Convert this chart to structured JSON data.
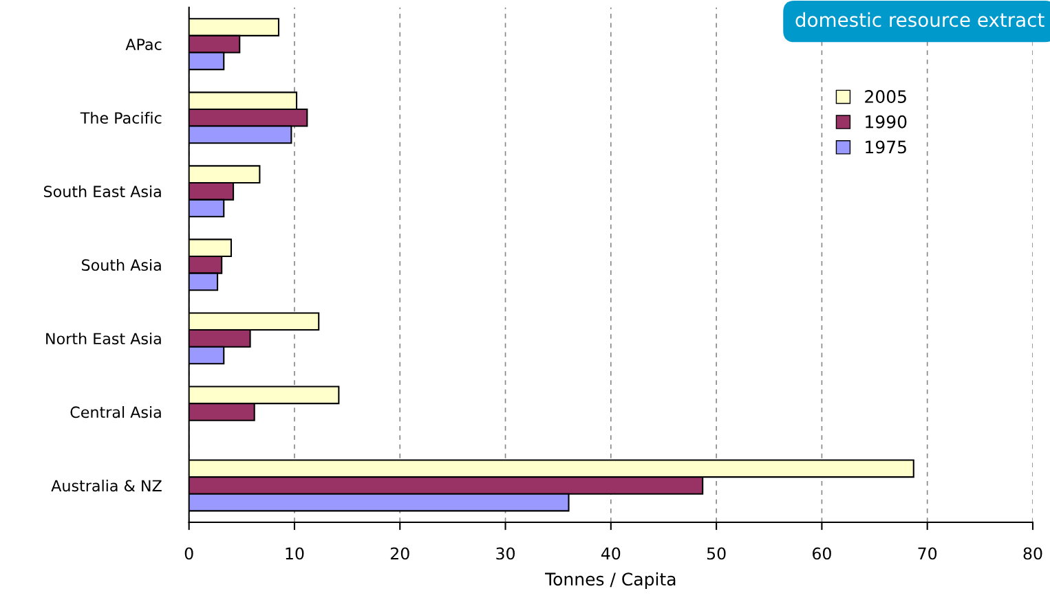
{
  "chart_data": {
    "type": "bar",
    "orientation": "horizontal",
    "xlabel": "Tonnes / Capita",
    "categories": [
      "APac",
      "The Pacific",
      "South East Asia",
      "South Asia",
      "North East Asia",
      "Central Asia",
      "Australia & NZ"
    ],
    "series": [
      {
        "name": "2005",
        "color": "#ffffcc",
        "values": [
          8.5,
          10.2,
          6.7,
          4.0,
          12.3,
          14.2,
          68.7
        ]
      },
      {
        "name": "1990",
        "color": "#993366",
        "values": [
          4.8,
          11.2,
          4.2,
          3.1,
          5.8,
          6.2,
          48.7
        ]
      },
      {
        "name": "1975",
        "color": "#9999ff",
        "values": [
          3.3,
          9.7,
          3.3,
          2.7,
          3.3,
          null,
          36.0
        ]
      }
    ],
    "xlim": [
      0,
      80
    ],
    "xticks": [
      0,
      10,
      20,
      30,
      40,
      50,
      60,
      70,
      80
    ],
    "grid": "x",
    "legend": "top right",
    "annotations": [
      "domestic resource extract"
    ]
  }
}
